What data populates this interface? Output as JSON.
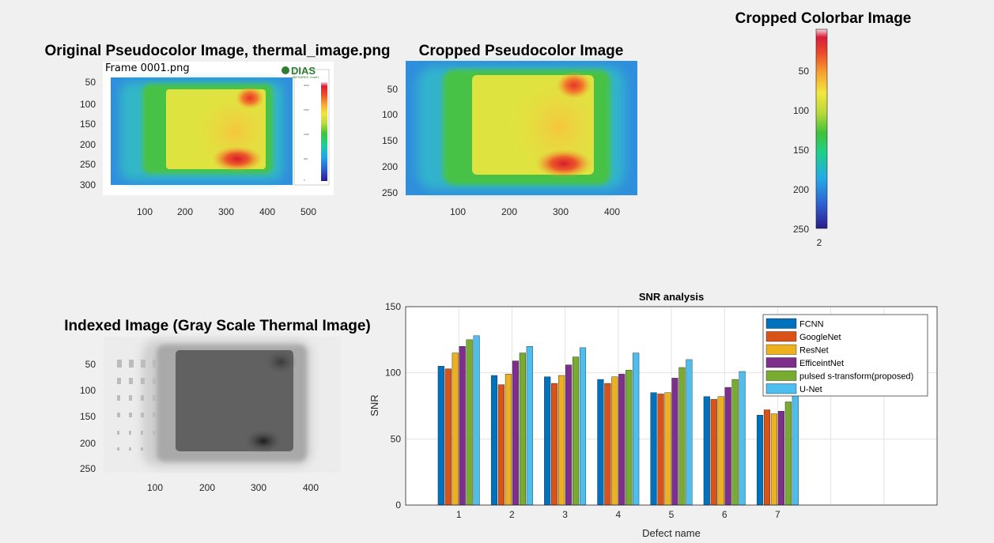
{
  "panels": {
    "original": {
      "title": "Original Pseudocolor Image, thermal_image.png",
      "frame_label": "Frame 0001.png",
      "logo": "DIAS",
      "logo_sub": "INFRARED GmbH",
      "yticks": [
        "50",
        "100",
        "150",
        "200",
        "250",
        "300"
      ],
      "xticks": [
        "100",
        "200",
        "300",
        "400",
        "500"
      ]
    },
    "cropped": {
      "title": "Cropped Pseudocolor Image",
      "yticks": [
        "50",
        "100",
        "150",
        "200",
        "250"
      ],
      "xticks": [
        "100",
        "200",
        "300",
        "400"
      ]
    },
    "colorbar": {
      "title": "Cropped Colorbar Image",
      "yticks": [
        "50",
        "100",
        "150",
        "200",
        "250"
      ],
      "xticks": [
        "2"
      ]
    },
    "indexed": {
      "title": "Indexed Image (Gray Scale Thermal Image)",
      "yticks": [
        "50",
        "100",
        "150",
        "200",
        "250"
      ],
      "xticks": [
        "100",
        "200",
        "300",
        "400"
      ]
    }
  },
  "colors": {
    "background": "#f0f0f0",
    "jet": [
      "#2a1b8c",
      "#2f5fd0",
      "#23a9e8",
      "#1fcf8a",
      "#3fc23b",
      "#b8d93a",
      "#f2e640",
      "#f6a431",
      "#ea4a2a",
      "#d81d3a",
      "#f7d7dd"
    ]
  },
  "chart_data": {
    "type": "bar",
    "title": "SNR analysis",
    "xlabel": "Defect name",
    "ylabel": "SNR",
    "ylim": [
      0,
      150
    ],
    "yticks": [
      0,
      50,
      100,
      150
    ],
    "categories": [
      "1",
      "2",
      "3",
      "4",
      "5",
      "6",
      "7"
    ],
    "grid": true,
    "legend_position": "top-right",
    "series": [
      {
        "name": "FCNN",
        "color": "#0072bd",
        "values": [
          105,
          98,
          97,
          95,
          85,
          82,
          68
        ]
      },
      {
        "name": " GoogleNet",
        "color": "#d95319",
        "values": [
          103,
          91,
          92,
          92,
          84,
          80,
          72
        ]
      },
      {
        "name": "ResNet",
        "color": "#edb120",
        "values": [
          115,
          99,
          98,
          97,
          85,
          82,
          69
        ]
      },
      {
        "name": "EfficeintNet",
        "color": "#7e2f8e",
        "values": [
          120,
          109,
          106,
          99,
          96,
          89,
          71
        ]
      },
      {
        "name": "pulsed s-transform(proposed)",
        "color": "#77ac30",
        "values": [
          125,
          115,
          112,
          102,
          104,
          95,
          78
        ]
      },
      {
        "name": "U-Net",
        "color": "#4dbeee",
        "values": [
          128,
          120,
          119,
          115,
          110,
          101,
          85
        ]
      }
    ]
  }
}
